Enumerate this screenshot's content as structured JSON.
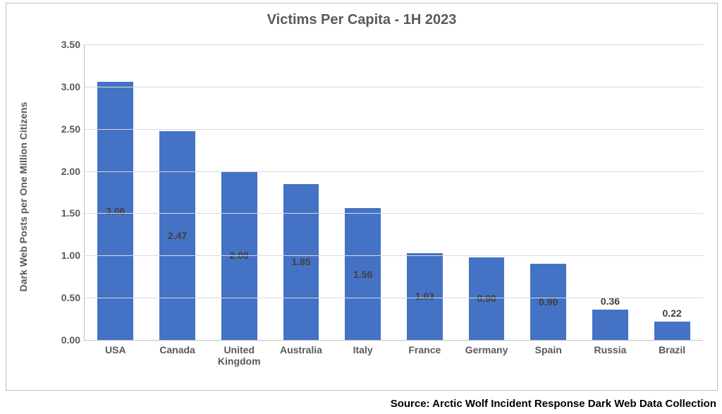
{
  "chart": {
    "type": "bar",
    "title": "Victims Per Capita - 1H 2023",
    "title_fontsize": 20,
    "title_color": "#595959",
    "y_axis_title": "Dark Web Posts per One Million Citizens",
    "axis_title_fontsize": 14,
    "axis_title_color": "#595959",
    "categories": [
      "USA",
      "Canada",
      "United Kingdom",
      "Australia",
      "Italy",
      "France",
      "Germany",
      "Spain",
      "Russia",
      "Brazil"
    ],
    "values": [
      3.06,
      2.47,
      2.0,
      1.85,
      1.56,
      1.03,
      0.98,
      0.9,
      0.36,
      0.22
    ],
    "value_labels": [
      "3.06",
      "2.47",
      "2.00",
      "1.85",
      "1.56",
      "1.03",
      "0.98",
      "0.90",
      "0.36",
      "0.22"
    ],
    "bar_color": "#4472c4",
    "ylim": [
      0,
      3.5
    ],
    "ytick_step": 0.5,
    "ytick_labels": [
      "0.00",
      "0.50",
      "1.00",
      "1.50",
      "2.00",
      "2.50",
      "3.00",
      "3.50"
    ],
    "tick_fontsize": 14,
    "tick_color": "#595959",
    "category_fontsize": 14,
    "value_label_fontsize": 14,
    "value_label_color": "#404040",
    "grid_color": "#d9d9d9",
    "border_color": "#bfbfbf",
    "background_color": "#ffffff",
    "bar_width_ratio": 0.58
  },
  "source_line": "Source: Arctic Wolf Incident Response Dark Web Data Collection",
  "source_fontsize": 15
}
